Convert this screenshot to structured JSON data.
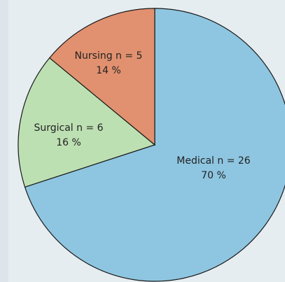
{
  "chart_data": {
    "type": "pie",
    "categories": [
      "Medical n = 26",
      "Surgical n = 6",
      "Nursing n = 5"
    ],
    "values": [
      70,
      16,
      14
    ],
    "value_labels": [
      "70 %",
      "16 %",
      "14 %"
    ],
    "colors": [
      "#8ec6e1",
      "#bde0b3",
      "#e1916f"
    ]
  }
}
